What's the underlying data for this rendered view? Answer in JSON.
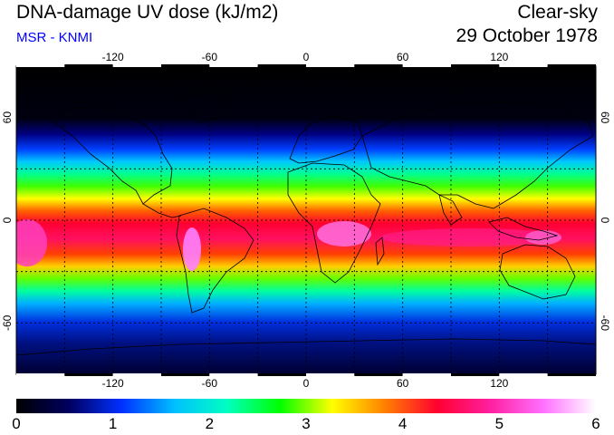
{
  "header": {
    "title": "DNA-damage UV dose (kJ/m2)",
    "source": "MSR - KNMI",
    "condition": "Clear-sky",
    "date": "29 October 1978"
  },
  "colors": {
    "source_text": "#0000ff",
    "frame": "#000000"
  },
  "map": {
    "lon_range": [
      -180,
      180
    ],
    "lat_range": [
      -90,
      90
    ],
    "lon_ticks": [
      -120,
      -60,
      0,
      60,
      120
    ],
    "lon_tick_labels": [
      "-120",
      "-60",
      "0",
      "60",
      "120"
    ],
    "lat_ticks": [
      -60,
      0,
      60
    ],
    "lat_tick_labels": [
      "-60",
      "0",
      "60"
    ],
    "gridlines": "dashed, every 30 degrees"
  },
  "colorbar": {
    "min": 0,
    "max": 6,
    "tick_labels": [
      "0",
      "1",
      "2",
      "3",
      "4",
      "5",
      "6"
    ],
    "stops": [
      "#000000",
      "#000060",
      "#0030ff",
      "#00c0ff",
      "#00ffc0",
      "#00ff00",
      "#ffff00",
      "#ff8000",
      "#ff0030",
      "#ff20a0",
      "#ff70ff",
      "#ffffff"
    ]
  }
}
